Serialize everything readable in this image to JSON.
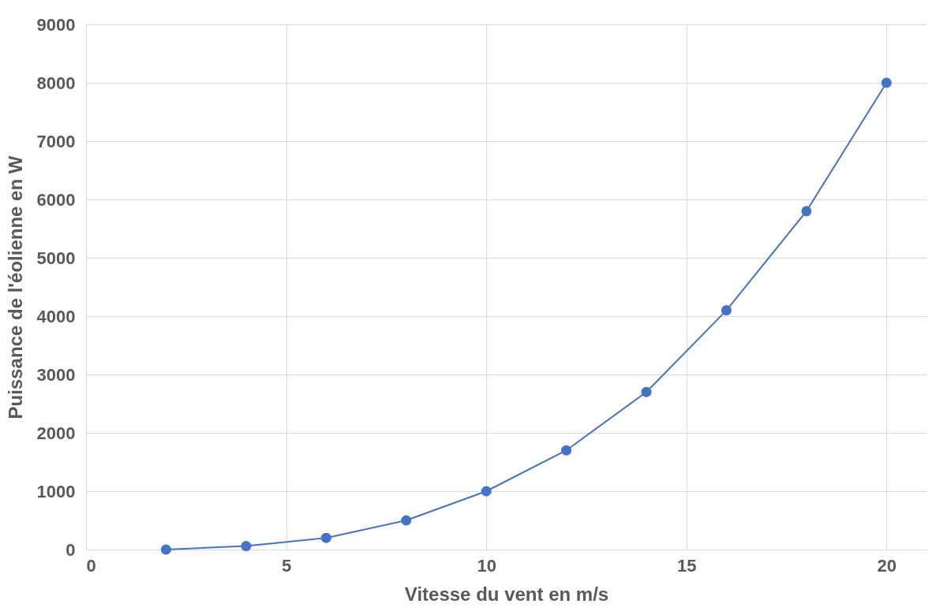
{
  "chart_data": {
    "type": "line",
    "xlabel": "Vitesse du vent en m/s",
    "ylabel": "Puissance de l'éolienne en W",
    "x": [
      2,
      4,
      6,
      8,
      10,
      12,
      14,
      16,
      18,
      20
    ],
    "series": [
      {
        "color": "#4472c4",
        "values": [
          0,
          60,
          200,
          500,
          1000,
          1700,
          2700,
          4100,
          5800,
          8000
        ]
      }
    ],
    "xlim": [
      0,
      21
    ],
    "xticks": [
      0,
      5,
      10,
      15,
      20
    ],
    "ylim": [
      0,
      9000
    ],
    "yticks": [
      0,
      1000,
      2000,
      3000,
      4000,
      5000,
      6000,
      7000,
      8000,
      9000
    ],
    "grid": true,
    "marker": "circle",
    "line_style": "solid",
    "legend": false
  }
}
